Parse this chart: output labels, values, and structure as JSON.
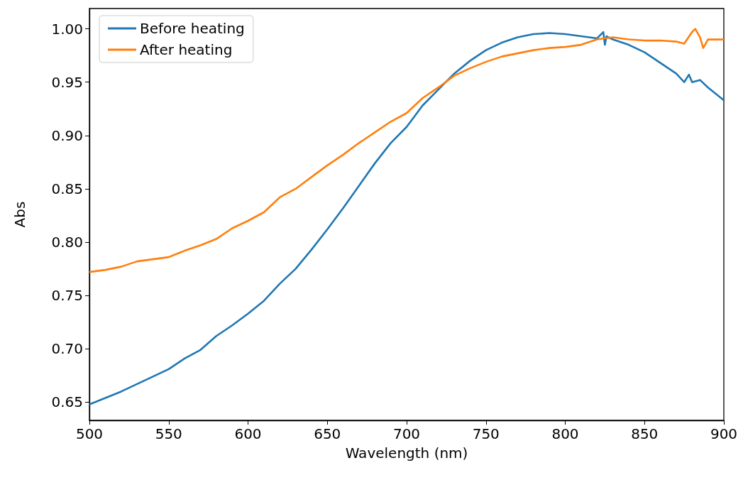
{
  "chart_data": {
    "type": "line",
    "xlabel": "Wavelength (nm)",
    "ylabel": "Abs",
    "xlim": [
      500,
      900
    ],
    "xticks": [
      500,
      550,
      600,
      650,
      700,
      750,
      800,
      850,
      900
    ],
    "ylim": [
      0.633,
      1.019
    ],
    "yticks": [
      {
        "value": 0.65,
        "label": "0.65"
      },
      {
        "value": 0.7,
        "label": "0.70"
      },
      {
        "value": 0.75,
        "label": "0.75"
      },
      {
        "value": 0.8,
        "label": "0.80"
      },
      {
        "value": 0.85,
        "label": "0.85"
      },
      {
        "value": 0.9,
        "label": "0.90"
      },
      {
        "value": 0.95,
        "label": "0.95"
      },
      {
        "value": 1.0,
        "label": "1.00"
      }
    ],
    "grid": false,
    "legend": "top left",
    "marker": "none",
    "line_style": "solid",
    "series": [
      {
        "name": "Before heating",
        "color": "#1f77b4",
        "x": [
          500,
          510,
          520,
          530,
          540,
          550,
          560,
          570,
          580,
          590,
          600,
          610,
          620,
          630,
          640,
          650,
          660,
          670,
          680,
          690,
          700,
          710,
          720,
          730,
          740,
          750,
          760,
          770,
          780,
          790,
          800,
          810,
          820,
          824,
          825,
          826,
          830,
          840,
          850,
          860,
          870,
          875,
          878,
          880,
          885,
          890,
          900
        ],
        "values": [
          0.648,
          0.654,
          0.66,
          0.667,
          0.674,
          0.681,
          0.691,
          0.699,
          0.712,
          0.722,
          0.733,
          0.745,
          0.761,
          0.775,
          0.793,
          0.812,
          0.832,
          0.853,
          0.874,
          0.893,
          0.908,
          0.928,
          0.943,
          0.958,
          0.97,
          0.98,
          0.987,
          0.992,
          0.995,
          0.996,
          0.995,
          0.993,
          0.991,
          0.997,
          0.985,
          0.993,
          0.99,
          0.985,
          0.978,
          0.968,
          0.958,
          0.95,
          0.957,
          0.95,
          0.952,
          0.945,
          0.933
        ]
      },
      {
        "name": "After heating",
        "color": "#ff7f0e",
        "x": [
          500,
          510,
          520,
          530,
          540,
          550,
          560,
          570,
          580,
          590,
          600,
          610,
          620,
          630,
          640,
          650,
          660,
          670,
          680,
          690,
          700,
          710,
          720,
          730,
          740,
          750,
          760,
          770,
          780,
          790,
          800,
          810,
          820,
          830,
          840,
          850,
          860,
          870,
          875,
          880,
          882,
          885,
          887,
          890,
          900
        ],
        "values": [
          0.772,
          0.774,
          0.777,
          0.782,
          0.784,
          0.786,
          0.792,
          0.797,
          0.803,
          0.813,
          0.82,
          0.828,
          0.842,
          0.85,
          0.861,
          0.872,
          0.882,
          0.893,
          0.903,
          0.913,
          0.921,
          0.935,
          0.945,
          0.956,
          0.963,
          0.969,
          0.974,
          0.977,
          0.98,
          0.982,
          0.983,
          0.985,
          0.99,
          0.992,
          0.99,
          0.989,
          0.989,
          0.988,
          0.986,
          0.997,
          1.0,
          0.992,
          0.982,
          0.99,
          0.99
        ]
      }
    ]
  }
}
